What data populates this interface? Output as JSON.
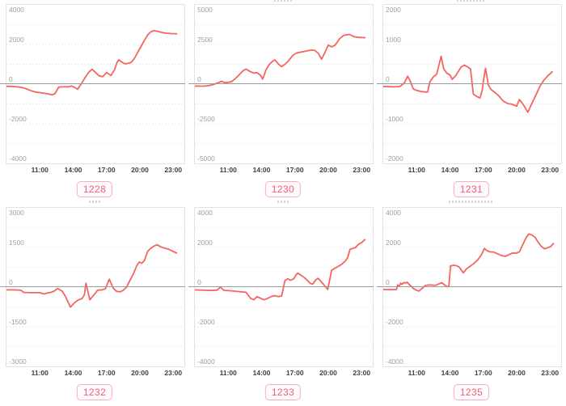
{
  "colors": {
    "line": "#f4655e",
    "zero_line": "#9a9a9a",
    "plot_border": "#e2e2e2",
    "grid": "#dcdcdc",
    "y_label": "#9e9e9e",
    "x_label": "#3f3f3f",
    "badge_text": "#ec5f76",
    "badge_border": "#f6aec2"
  },
  "x_axis": {
    "range": [
      8,
      24
    ],
    "ticks": [
      {
        "value": 11,
        "label": "11:00"
      },
      {
        "value": 14,
        "label": "14:00"
      },
      {
        "value": 17,
        "label": "17:00"
      },
      {
        "value": 20,
        "label": "20:00"
      },
      {
        "value": 23,
        "label": "23:00"
      }
    ]
  },
  "chart_data": [
    {
      "type": "line",
      "badge": "1228",
      "ylim": [
        -4000,
        4000
      ],
      "yticks": [
        4000,
        2000,
        0,
        -2000,
        -4000
      ],
      "x": [
        8.0,
        8.5,
        9.0,
        9.4,
        9.8,
        10.2,
        10.6,
        11.0,
        11.4,
        11.8,
        12.1,
        12.35,
        12.7,
        13.0,
        13.3,
        13.65,
        13.85,
        14.1,
        14.4,
        14.75,
        15.1,
        15.4,
        15.7,
        15.95,
        16.3,
        16.65,
        17.0,
        17.4,
        17.7,
        17.95,
        18.1,
        18.4,
        18.7,
        19.0,
        19.2,
        19.5,
        19.8,
        20.1,
        20.4,
        20.7,
        21.0,
        21.3,
        21.6,
        22.0,
        22.4,
        22.8,
        23.1,
        23.3
      ],
      "y": [
        -110,
        -120,
        -140,
        -170,
        -240,
        -330,
        -400,
        -430,
        -460,
        -500,
        -540,
        -490,
        -150,
        -140,
        -140,
        -130,
        -95,
        -160,
        -260,
        30,
        350,
        600,
        750,
        620,
        430,
        370,
        580,
        440,
        700,
        1100,
        1230,
        1100,
        1020,
        1060,
        1090,
        1290,
        1600,
        1900,
        2200,
        2480,
        2650,
        2700,
        2660,
        2600,
        2570,
        2550,
        2545,
        2540
      ]
    },
    {
      "type": "line",
      "badge": "1230",
      "ylim": [
        -5000,
        5000
      ],
      "yticks": [
        5000,
        2500,
        0,
        -2500,
        -5000
      ],
      "x": [
        8.0,
        8.4,
        8.8,
        9.2,
        9.6,
        10.0,
        10.4,
        10.7,
        11.0,
        11.3,
        11.6,
        12.0,
        12.3,
        12.6,
        13.0,
        13.3,
        13.6,
        13.9,
        14.1,
        14.4,
        14.7,
        15.0,
        15.2,
        15.5,
        15.8,
        16.1,
        16.4,
        16.8,
        17.1,
        17.4,
        17.8,
        18.1,
        18.5,
        18.8,
        19.1,
        19.4,
        19.7,
        20.0,
        20.3,
        20.6,
        21.0,
        21.4,
        21.9,
        22.3,
        22.7,
        23.0,
        23.3
      ],
      "y": [
        -120,
        -130,
        -130,
        -100,
        -40,
        60,
        180,
        90,
        110,
        160,
        320,
        600,
        820,
        950,
        780,
        700,
        720,
        560,
        310,
        900,
        1250,
        1450,
        1530,
        1280,
        1100,
        1250,
        1450,
        1800,
        1950,
        2000,
        2050,
        2100,
        2150,
        2120,
        1950,
        1570,
        2000,
        2460,
        2350,
        2450,
        2850,
        3080,
        3140,
        3000,
        2950,
        2940,
        2930
      ]
    },
    {
      "type": "line",
      "badge": "1231",
      "ylim": [
        -2000,
        2000
      ],
      "yticks": [
        2000,
        1000,
        0,
        -1000,
        -2000
      ],
      "x": [
        8.0,
        8.5,
        9.0,
        9.5,
        9.9,
        10.2,
        10.45,
        10.7,
        11.0,
        11.4,
        11.8,
        12.0,
        12.2,
        12.5,
        12.8,
        13.0,
        13.2,
        13.45,
        13.7,
        14.0,
        14.2,
        14.5,
        14.8,
        15.0,
        15.3,
        15.6,
        15.85,
        16.1,
        16.4,
        16.7,
        16.9,
        17.05,
        17.2,
        17.45,
        17.7,
        18.0,
        18.4,
        18.8,
        19.2,
        19.6,
        20.0,
        20.25,
        20.6,
        21.0,
        21.4,
        21.8,
        22.1,
        22.4,
        22.8,
        23.2
      ],
      "y": [
        -60,
        -65,
        -70,
        -60,
        30,
        200,
        60,
        -120,
        -160,
        -185,
        -200,
        -195,
        60,
        180,
        250,
        480,
        700,
        380,
        280,
        230,
        120,
        210,
        340,
        430,
        480,
        430,
        380,
        -250,
        -310,
        -350,
        -150,
        150,
        400,
        -20,
        -140,
        -200,
        -300,
        -430,
        -490,
        -510,
        -560,
        -390,
        -520,
        -710,
        -470,
        -230,
        -50,
        80,
        210,
        310
      ]
    },
    {
      "type": "line",
      "badge": "1232",
      "ylim": [
        -3000,
        3000
      ],
      "yticks": [
        3000,
        1500,
        0,
        -1500,
        -3000
      ],
      "x": [
        8.0,
        8.5,
        9.0,
        9.3,
        9.55,
        10.0,
        10.5,
        11.0,
        11.35,
        11.6,
        12.0,
        12.3,
        12.6,
        13.0,
        13.3,
        13.75,
        14.1,
        14.4,
        14.8,
        15.0,
        15.15,
        15.5,
        15.9,
        16.2,
        16.6,
        16.9,
        17.1,
        17.25,
        17.6,
        17.9,
        18.2,
        18.5,
        18.8,
        19.1,
        19.4,
        19.7,
        19.95,
        20.15,
        20.4,
        20.7,
        21.0,
        21.3,
        21.55,
        21.9,
        22.2,
        22.6,
        23.0,
        23.3
      ],
      "y": [
        -100,
        -105,
        -110,
        -120,
        -200,
        -210,
        -210,
        -210,
        -260,
        -230,
        -200,
        -150,
        -50,
        -150,
        -350,
        -755,
        -600,
        -500,
        -430,
        -300,
        150,
        -480,
        -280,
        -120,
        -100,
        -60,
        150,
        300,
        -40,
        -160,
        -180,
        -120,
        0,
        250,
        480,
        800,
        950,
        900,
        1000,
        1350,
        1480,
        1560,
        1600,
        1520,
        1480,
        1430,
        1350,
        1290
      ]
    },
    {
      "type": "line",
      "badge": "1233",
      "ylim": [
        -4000,
        4000
      ],
      "yticks": [
        4000,
        2000,
        0,
        -2000,
        -4000
      ],
      "x": [
        8.0,
        8.5,
        9.0,
        9.5,
        10.0,
        10.3,
        10.6,
        11.0,
        11.5,
        12.0,
        12.6,
        13.0,
        13.3,
        13.6,
        13.9,
        14.2,
        14.5,
        14.9,
        15.2,
        15.5,
        15.8,
        16.1,
        16.35,
        16.6,
        16.9,
        17.1,
        17.25,
        17.5,
        17.8,
        18.1,
        18.4,
        18.6,
        18.9,
        19.1,
        19.4,
        19.7,
        19.95,
        20.1,
        20.3,
        20.6,
        20.9,
        21.2,
        21.5,
        21.75,
        21.95,
        22.2,
        22.45,
        22.7,
        23.0,
        23.3
      ],
      "y": [
        -140,
        -150,
        -160,
        -170,
        -150,
        0,
        -160,
        -180,
        -200,
        -230,
        -260,
        -560,
        -640,
        -480,
        -560,
        -640,
        -580,
        -470,
        -430,
        -480,
        -450,
        330,
        420,
        350,
        420,
        620,
        700,
        620,
        500,
        350,
        180,
        150,
        380,
        440,
        250,
        50,
        -120,
        300,
        850,
        950,
        1050,
        1150,
        1300,
        1500,
        1900,
        1950,
        2000,
        2150,
        2250,
        2400
      ]
    },
    {
      "type": "line",
      "badge": "1235",
      "ylim": [
        -4000,
        4000
      ],
      "yticks": [
        4000,
        2000,
        0,
        -2000,
        -4000
      ],
      "x": [
        8.0,
        8.5,
        9.0,
        9.2,
        9.3,
        9.45,
        9.55,
        9.7,
        9.85,
        10.0,
        10.15,
        10.4,
        10.7,
        10.95,
        11.2,
        11.5,
        11.8,
        12.1,
        12.4,
        12.7,
        13.0,
        13.25,
        13.5,
        13.75,
        13.9,
        14.05,
        14.3,
        14.6,
        14.85,
        15.2,
        15.5,
        15.8,
        16.1,
        16.5,
        16.85,
        17.1,
        17.35,
        17.6,
        17.9,
        18.2,
        18.6,
        18.95,
        19.25,
        19.6,
        19.95,
        20.25,
        20.55,
        20.85,
        21.1,
        21.4,
        21.65,
        21.95,
        22.2,
        22.5,
        22.8,
        23.05,
        23.3
      ],
      "y": [
        -120,
        -125,
        -125,
        -120,
        120,
        40,
        200,
        140,
        230,
        210,
        245,
        100,
        -60,
        -150,
        -200,
        -60,
        80,
        110,
        100,
        90,
        160,
        220,
        120,
        20,
        30,
        1070,
        1100,
        1080,
        1000,
        720,
        930,
        1050,
        1170,
        1380,
        1650,
        1950,
        1830,
        1780,
        1770,
        1700,
        1600,
        1550,
        1620,
        1720,
        1710,
        1780,
        2150,
        2500,
        2680,
        2620,
        2520,
        2250,
        2060,
        1930,
        1990,
        2040,
        2200
      ]
    }
  ]
}
